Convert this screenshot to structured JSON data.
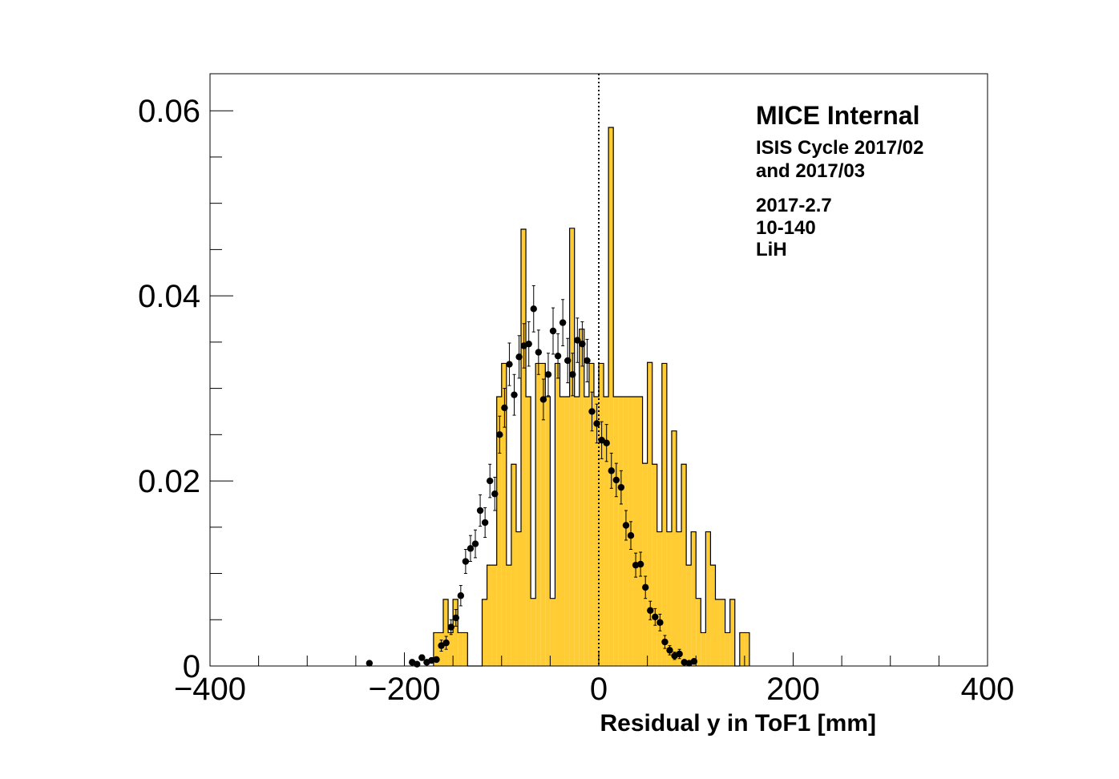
{
  "chart_data": {
    "type": "histogram",
    "xlabel": "Residual y in ToF1 [mm]",
    "ylabel": "",
    "xlim": [
      -400,
      400
    ],
    "ylim": [
      0,
      0.064
    ],
    "x_ticks": [
      "−400",
      "−200",
      "0",
      "200",
      "400"
    ],
    "y_ticks": [
      "0",
      "0.02",
      "0.04",
      "0.06"
    ],
    "grid": false,
    "reference_line": {
      "x": 0,
      "style": "dotted"
    },
    "fill_color": "#ffcc33",
    "annotation": {
      "title": "MICE Internal",
      "lines": [
        "ISIS Cycle 2017/02",
        "and 2017/03",
        "2017-2.7",
        "10-140",
        "LiH"
      ]
    },
    "series": [
      {
        "kind": "step-filled",
        "bin_width": 5,
        "bins": [
          [
            -170,
            0.0036
          ],
          [
            -165,
            0.0036
          ],
          [
            -160,
            0.0072
          ],
          [
            -155,
            0.0036
          ],
          [
            -150,
            0.0072
          ],
          [
            -145,
            0.0036
          ],
          [
            -140,
            0.0036
          ],
          [
            -135,
            0.0
          ],
          [
            -130,
            0.0
          ],
          [
            -125,
            0.0
          ],
          [
            -120,
            0.0072
          ],
          [
            -115,
            0.0109
          ],
          [
            -110,
            0.0109
          ],
          [
            -105,
            0.0291
          ],
          [
            -100,
            0.0327
          ],
          [
            -95,
            0.0109
          ],
          [
            -90,
            0.0218
          ],
          [
            -85,
            0.0145
          ],
          [
            -80,
            0.0472
          ],
          [
            -75,
            0.0291
          ],
          [
            -70,
            0.0073
          ],
          [
            -65,
            0.0327
          ],
          [
            -60,
            0.0327
          ],
          [
            -55,
            0.0291
          ],
          [
            -50,
            0.0073
          ],
          [
            -45,
            0.0327
          ],
          [
            -40,
            0.0291
          ],
          [
            -35,
            0.0291
          ],
          [
            -30,
            0.0473
          ],
          [
            -25,
            0.0291
          ],
          [
            -20,
            0.0364
          ],
          [
            -15,
            0.0291
          ],
          [
            -10,
            0.0327
          ],
          [
            -5,
            0.0291
          ],
          [
            0,
            0.0327
          ],
          [
            5,
            0.0291
          ],
          [
            10,
            0.0582
          ],
          [
            15,
            0.0291
          ],
          [
            20,
            0.0291
          ],
          [
            25,
            0.0291
          ],
          [
            30,
            0.0291
          ],
          [
            35,
            0.0291
          ],
          [
            40,
            0.0291
          ],
          [
            45,
            0.0219
          ],
          [
            50,
            0.0328
          ],
          [
            55,
            0.0218
          ],
          [
            60,
            0.0145
          ],
          [
            65,
            0.0327
          ],
          [
            70,
            0.0145
          ],
          [
            75,
            0.0254
          ],
          [
            80,
            0.0145
          ],
          [
            85,
            0.0218
          ],
          [
            90,
            0.0109
          ],
          [
            95,
            0.0145
          ],
          [
            100,
            0.0073
          ],
          [
            105,
            0.0036
          ],
          [
            110,
            0.0145
          ],
          [
            115,
            0.0109
          ],
          [
            120,
            0.0072
          ],
          [
            125,
            0.0072
          ],
          [
            130,
            0.0036
          ],
          [
            135,
            0.0072
          ],
          [
            140,
            0.0
          ],
          [
            145,
            0.0036
          ],
          [
            150,
            0.0036
          ]
        ]
      },
      {
        "kind": "points-with-errors",
        "points": [
          [
            -236,
            0.0003,
            0.0002
          ],
          [
            -192,
            0.0004,
            0.0002
          ],
          [
            -187,
            0.0002,
            0.0002
          ],
          [
            -182,
            0.0009,
            0.0003
          ],
          [
            -177,
            0.0004,
            0.0002
          ],
          [
            -172,
            0.0006,
            0.0003
          ],
          [
            -167,
            0.0007,
            0.0003
          ],
          [
            -162,
            0.0022,
            0.0006
          ],
          [
            -157,
            0.0025,
            0.0007
          ],
          [
            -152,
            0.0042,
            0.0008
          ],
          [
            -147,
            0.0052,
            0.0009
          ],
          [
            -142,
            0.0076,
            0.0011
          ],
          [
            -137,
            0.0113,
            0.0013
          ],
          [
            -132,
            0.0127,
            0.0014
          ],
          [
            -127,
            0.0132,
            0.0015
          ],
          [
            -122,
            0.0168,
            0.0017
          ],
          [
            -117,
            0.0155,
            0.0016
          ],
          [
            -112,
            0.02,
            0.0018
          ],
          [
            -107,
            0.0186,
            0.0018
          ],
          [
            -102,
            0.025,
            0.002
          ],
          [
            -97,
            0.0279,
            0.0021
          ],
          [
            -92,
            0.0326,
            0.0023
          ],
          [
            -87,
            0.0293,
            0.0022
          ],
          [
            -82,
            0.0334,
            0.0023
          ],
          [
            -77,
            0.0346,
            0.0024
          ],
          [
            -72,
            0.0348,
            0.0024
          ],
          [
            -67,
            0.0386,
            0.0025
          ],
          [
            -62,
            0.0339,
            0.0024
          ],
          [
            -57,
            0.0288,
            0.0022
          ],
          [
            -52,
            0.0315,
            0.0023
          ],
          [
            -47,
            0.0362,
            0.0025
          ],
          [
            -42,
            0.0335,
            0.0024
          ],
          [
            -37,
            0.0371,
            0.0025
          ],
          [
            -32,
            0.033,
            0.0024
          ],
          [
            -27,
            0.0315,
            0.0023
          ],
          [
            -22,
            0.0352,
            0.0024
          ],
          [
            -17,
            0.0348,
            0.0024
          ],
          [
            -12,
            0.033,
            0.0023
          ],
          [
            -7,
            0.0275,
            0.0021
          ],
          [
            -2,
            0.0262,
            0.0021
          ],
          [
            3,
            0.0244,
            0.002
          ],
          [
            8,
            0.0241,
            0.002
          ],
          [
            13,
            0.0211,
            0.0019
          ],
          [
            18,
            0.0201,
            0.0018
          ],
          [
            23,
            0.0193,
            0.0018
          ],
          [
            28,
            0.0152,
            0.0016
          ],
          [
            33,
            0.0141,
            0.0015
          ],
          [
            38,
            0.0109,
            0.0013
          ],
          [
            43,
            0.011,
            0.0013
          ],
          [
            48,
            0.0085,
            0.0012
          ],
          [
            53,
            0.006,
            0.001
          ],
          [
            58,
            0.0053,
            0.0009
          ],
          [
            63,
            0.0047,
            0.0009
          ],
          [
            68,
            0.0026,
            0.0007
          ],
          [
            73,
            0.0017,
            0.0005
          ],
          [
            78,
            0.0011,
            0.0004
          ],
          [
            83,
            0.0013,
            0.0005
          ],
          [
            88,
            0.0004,
            0.0002
          ],
          [
            93,
            0.0003,
            0.0002
          ],
          [
            98,
            0.0005,
            0.0002
          ]
        ]
      }
    ]
  }
}
